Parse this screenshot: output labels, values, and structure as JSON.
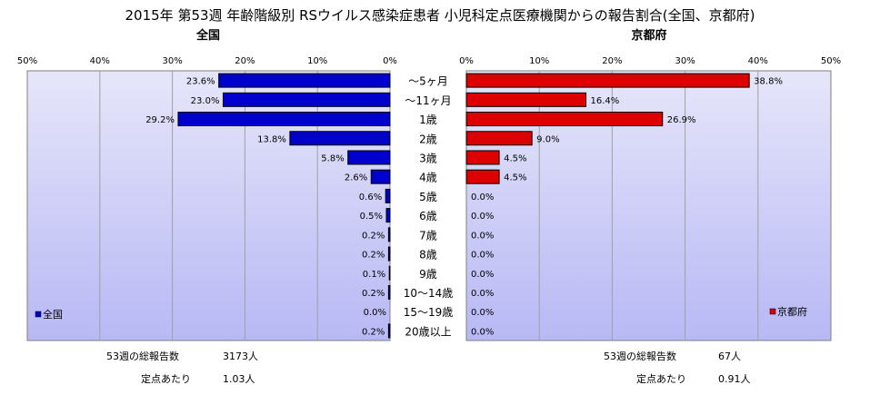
{
  "title": "2015年 第53週 年齢階級別 RSウイルス感染症患者 小児科定点医療機関からの報告割合(全国、京都府)",
  "colors": {
    "national_fill": "#0000CC",
    "kyoto_fill": "#DD0000",
    "plot_bg_top": "#E6E6FA",
    "plot_bg_bottom": "#B8B8F5",
    "gridline": "#A0A0A0"
  },
  "chart_data": [
    {
      "type": "bar",
      "orientation": "horizontal",
      "direction": "right-to-left",
      "title": "全国",
      "categories": [
        "～5ヶ月",
        "～11ヶ月",
        "1歳",
        "2歳",
        "3歳",
        "4歳",
        "5歳",
        "6歳",
        "7歳",
        "8歳",
        "9歳",
        "10～14歳",
        "15～19歳",
        "20歳以上"
      ],
      "series": [
        {
          "name": "全国",
          "values": [
            23.6,
            23.0,
            29.2,
            13.8,
            5.8,
            2.6,
            0.6,
            0.5,
            0.2,
            0.2,
            0.1,
            0.2,
            0.0,
            0.2
          ],
          "labels": [
            "23.6%",
            "23.0%",
            "29.2%",
            "13.8%",
            "5.8%",
            "2.6%",
            "0.6%",
            "0.5%",
            "0.2%",
            "0.2%",
            "0.1%",
            "0.2%",
            "0.0%",
            "0.2%"
          ]
        }
      ],
      "xlim": [
        0,
        50
      ],
      "xticks": [
        "50%",
        "40%",
        "30%",
        "20%",
        "10%",
        "0%"
      ],
      "grid": true,
      "legend": "bottom-left",
      "legend_label": "全国"
    },
    {
      "type": "bar",
      "orientation": "horizontal",
      "direction": "left-to-right",
      "title": "京都府",
      "categories": [
        "～5ヶ月",
        "～11ヶ月",
        "1歳",
        "2歳",
        "3歳",
        "4歳",
        "5歳",
        "6歳",
        "7歳",
        "8歳",
        "9歳",
        "10～14歳",
        "15～19歳",
        "20歳以上"
      ],
      "series": [
        {
          "name": "京都府",
          "values": [
            38.8,
            16.4,
            26.9,
            9.0,
            4.5,
            4.5,
            0.0,
            0.0,
            0.0,
            0.0,
            0.0,
            0.0,
            0.0,
            0.0
          ],
          "labels": [
            "38.8%",
            "16.4%",
            "26.9%",
            "9.0%",
            "4.5%",
            "4.5%",
            "0.0%",
            "0.0%",
            "0.0%",
            "0.0%",
            "0.0%",
            "0.0%",
            "0.0%",
            "0.0%"
          ]
        }
      ],
      "xlim": [
        0,
        50
      ],
      "xticks": [
        "0%",
        "10%",
        "20%",
        "30%",
        "40%",
        "50%"
      ],
      "grid": true,
      "legend": "bottom-right",
      "legend_label": "京都府"
    }
  ],
  "summary": {
    "national": {
      "total_label": "53週の総報告数",
      "total_value": "3173人",
      "per_site_label": "定点あたり",
      "per_site_value": "1.03人"
    },
    "kyoto": {
      "total_label": "53週の総報告数",
      "total_value": "67人",
      "per_site_label": "定点あたり",
      "per_site_value": "0.91人"
    }
  }
}
